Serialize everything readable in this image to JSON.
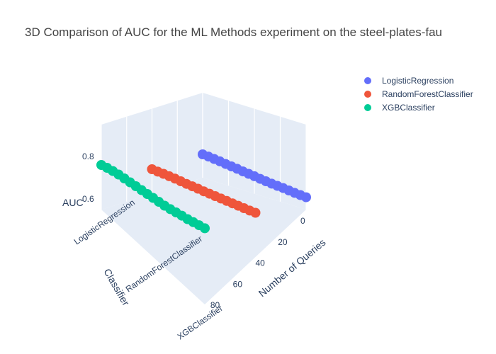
{
  "chart_data": {
    "type": "scatter3d",
    "title": "3D Comparison of AUC for the ML Methods experiment on the steel-plates-fau",
    "axes": {
      "x": {
        "title": "Number of Queries",
        "ticks": [
          0,
          20,
          40,
          60,
          80
        ],
        "range": [
          0,
          90
        ]
      },
      "y": {
        "title": "Classifier",
        "ticks": [
          "LogisticRegression",
          "RandomForestClassifier",
          "XGBClassifier"
        ]
      },
      "z": {
        "title": "AUC",
        "ticks": [
          0.6,
          0.8
        ],
        "range": [
          0.55,
          0.95
        ]
      }
    },
    "legend": {
      "position": "top-right"
    },
    "series": [
      {
        "name": "LogisticRegression",
        "color": "#636efa",
        "category_index": 0,
        "points": [
          [
            0,
            0.66
          ],
          [
            5,
            0.658
          ],
          [
            10,
            0.655
          ],
          [
            15,
            0.652
          ],
          [
            20,
            0.648
          ],
          [
            25,
            0.645
          ],
          [
            30,
            0.642
          ],
          [
            35,
            0.638
          ],
          [
            40,
            0.635
          ],
          [
            45,
            0.632
          ],
          [
            50,
            0.628
          ],
          [
            55,
            0.625
          ],
          [
            60,
            0.622
          ],
          [
            65,
            0.62
          ],
          [
            70,
            0.618
          ],
          [
            75,
            0.615
          ],
          [
            80,
            0.612
          ],
          [
            85,
            0.61
          ],
          [
            90,
            0.608
          ]
        ]
      },
      {
        "name": "RandomForestClassifier",
        "color": "#ef553b",
        "category_index": 1,
        "points": [
          [
            0,
            0.665
          ],
          [
            5,
            0.662
          ],
          [
            10,
            0.66
          ],
          [
            15,
            0.657
          ],
          [
            20,
            0.654
          ],
          [
            25,
            0.65
          ],
          [
            30,
            0.646
          ],
          [
            35,
            0.643
          ],
          [
            40,
            0.64
          ],
          [
            45,
            0.636
          ],
          [
            50,
            0.633
          ],
          [
            55,
            0.63
          ],
          [
            60,
            0.627
          ],
          [
            65,
            0.624
          ],
          [
            70,
            0.621
          ],
          [
            75,
            0.618
          ],
          [
            80,
            0.615
          ],
          [
            85,
            0.612
          ],
          [
            90,
            0.61
          ]
        ]
      },
      {
        "name": "XGBClassifier",
        "color": "#00cc96",
        "category_index": 2,
        "points": [
          [
            0,
            0.76
          ],
          [
            5,
            0.755
          ],
          [
            10,
            0.748
          ],
          [
            15,
            0.74
          ],
          [
            20,
            0.73
          ],
          [
            25,
            0.72
          ],
          [
            30,
            0.71
          ],
          [
            35,
            0.7
          ],
          [
            40,
            0.69
          ],
          [
            45,
            0.68
          ],
          [
            50,
            0.67
          ],
          [
            55,
            0.66
          ],
          [
            60,
            0.652
          ],
          [
            65,
            0.645
          ],
          [
            70,
            0.638
          ],
          [
            75,
            0.63
          ],
          [
            80,
            0.624
          ],
          [
            85,
            0.618
          ],
          [
            90,
            0.612
          ]
        ]
      }
    ]
  }
}
